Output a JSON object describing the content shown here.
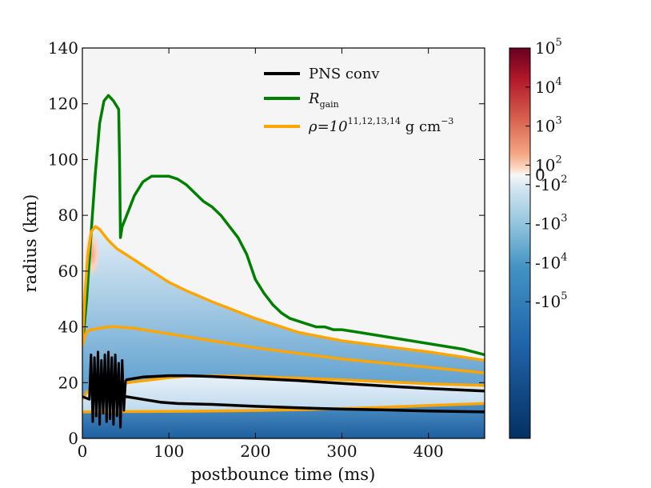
{
  "chart_data": {
    "type": "line",
    "background": "heatmap",
    "xlabel": "postbounce time (ms)",
    "ylabel": "radius (km)",
    "xlim": [
      0,
      465
    ],
    "ylim": [
      0,
      140
    ],
    "xticks": [
      0,
      100,
      200,
      300,
      400
    ],
    "yticks": [
      0,
      20,
      40,
      60,
      80,
      100,
      120,
      140
    ],
    "xtick_labels": [
      "0",
      "100",
      "200",
      "300",
      "400"
    ],
    "ytick_labels": [
      "0",
      "20",
      "40",
      "60",
      "80",
      "100",
      "120",
      "140"
    ],
    "legend": {
      "position": "top-right",
      "entries": [
        {
          "id": "pns",
          "base": "PNS conv",
          "color": "#000000"
        },
        {
          "id": "gain",
          "base": "R",
          "sub": "gain",
          "color": "#008000"
        },
        {
          "id": "rho",
          "base": "ρ=10",
          "sup": "11,12,13,14",
          "suffix": " g cm",
          "suffix_sup": "−3",
          "color": "#ffa500"
        }
      ]
    },
    "colorbar": {
      "scale": "symlog",
      "labels": [
        {
          "base": "10",
          "exp": "5",
          "frac": 0.0
        },
        {
          "base": "10",
          "exp": "4",
          "frac": 0.1
        },
        {
          "base": "10",
          "exp": "3",
          "frac": 0.2
        },
        {
          "base": "10",
          "exp": "2",
          "frac": 0.3
        },
        {
          "base": "0",
          "exp": "",
          "frac": 0.325
        },
        {
          "base": "-10",
          "exp": "2",
          "frac": 0.35
        },
        {
          "base": "-10",
          "exp": "3",
          "frac": 0.45
        },
        {
          "base": "-10",
          "exp": "4",
          "frac": 0.55
        },
        {
          "base": "-10",
          "exp": "5",
          "frac": 0.65
        }
      ],
      "colors": [
        "#67001f",
        "#b2182b",
        "#d6604d",
        "#f4a582",
        "#fddbc7",
        "#f7f7f7",
        "#d1e5f0",
        "#92c5de",
        "#4393c3",
        "#2166ac",
        "#053061"
      ]
    },
    "series": [
      {
        "name": "R_gain",
        "color": "#008000",
        "x": [
          0,
          5,
          10,
          15,
          20,
          25,
          30,
          33,
          36,
          40,
          42,
          43,
          44,
          46,
          50,
          55,
          60,
          70,
          80,
          90,
          100,
          110,
          120,
          130,
          140,
          150,
          160,
          170,
          180,
          190,
          200,
          210,
          220,
          230,
          240,
          250,
          260,
          270,
          280,
          290,
          300,
          320,
          340,
          360,
          380,
          400,
          420,
          440,
          465
        ],
        "y": [
          33,
          50,
          73,
          95,
          113,
          121,
          123,
          122,
          121,
          119,
          118,
          100,
          72,
          76,
          79,
          83,
          87,
          92,
          94,
          94,
          94,
          93,
          91,
          88,
          85,
          83,
          80,
          76,
          72,
          66,
          57,
          52,
          48,
          45,
          43,
          42,
          41,
          40,
          40,
          39,
          39,
          38,
          37,
          36,
          35,
          34,
          33,
          32,
          30
        ]
      },
      {
        "name": "rho_1e11",
        "color": "#ffa500",
        "x": [
          0,
          3,
          6,
          10,
          15,
          20,
          25,
          30,
          40,
          50,
          60,
          80,
          100,
          120,
          150,
          200,
          250,
          300,
          350,
          400,
          465
        ],
        "y": [
          35,
          52,
          65,
          74,
          76,
          75,
          73,
          71,
          68,
          66,
          64,
          60,
          56,
          53,
          49,
          43,
          38,
          35,
          33,
          31,
          28
        ]
      },
      {
        "name": "rho_1e12",
        "color": "#ffa500",
        "x": [
          0,
          3,
          6,
          10,
          20,
          30,
          40,
          60,
          80,
          100,
          150,
          200,
          250,
          300,
          350,
          400,
          465
        ],
        "y": [
          33,
          37,
          38.5,
          39,
          39.5,
          40,
          40,
          39.5,
          38.5,
          37.5,
          35,
          32.5,
          30.5,
          28.5,
          27,
          25.5,
          23.5
        ]
      },
      {
        "name": "rho_1e13",
        "color": "#ffa500",
        "x": [
          0,
          5,
          10,
          20,
          30,
          40,
          60,
          80,
          100,
          120,
          150,
          200,
          250,
          300,
          350,
          400,
          465
        ],
        "y": [
          14,
          16.5,
          17.5,
          18.2,
          18.8,
          19.3,
          20.3,
          21,
          21.8,
          22.3,
          22.5,
          22.2,
          21.6,
          21,
          20.3,
          19.6,
          19
        ]
      },
      {
        "name": "rho_1e14",
        "color": "#ffa500",
        "x": [
          0,
          50,
          100,
          150,
          200,
          250,
          300,
          350,
          400,
          465
        ],
        "y": [
          9.5,
          9.6,
          9.7,
          9.8,
          10,
          10.3,
          10.7,
          11.2,
          11.8,
          12.5
        ]
      },
      {
        "name": "PNS_conv_outer",
        "color": "#000000",
        "x": [
          50,
          70,
          100,
          120,
          150,
          200,
          250,
          300,
          350,
          400,
          465
        ],
        "y": [
          21,
          22,
          22.5,
          22.5,
          22.2,
          21.5,
          20.7,
          19.7,
          18.8,
          17.9,
          17
        ]
      },
      {
        "name": "PNS_conv_inner",
        "color": "#000000",
        "x": [
          50,
          70,
          90,
          110,
          150,
          200,
          250,
          300,
          350,
          400,
          465
        ],
        "y": [
          15,
          14,
          13,
          12.5,
          12.2,
          11.5,
          11,
          10.5,
          10.2,
          9.8,
          9.5
        ]
      },
      {
        "name": "PNS_conv_early",
        "color": "#000000",
        "x": [
          0,
          8,
          10,
          12,
          14,
          16,
          18,
          20,
          22,
          24,
          26,
          28,
          30,
          32,
          34,
          36,
          38,
          40,
          42,
          44,
          46,
          48,
          50
        ],
        "y": [
          15,
          14,
          30,
          6,
          29,
          8,
          31,
          5,
          28,
          9,
          30,
          6,
          31,
          7,
          29,
          5,
          30,
          8,
          27,
          4,
          28,
          10,
          21
        ]
      }
    ]
  }
}
